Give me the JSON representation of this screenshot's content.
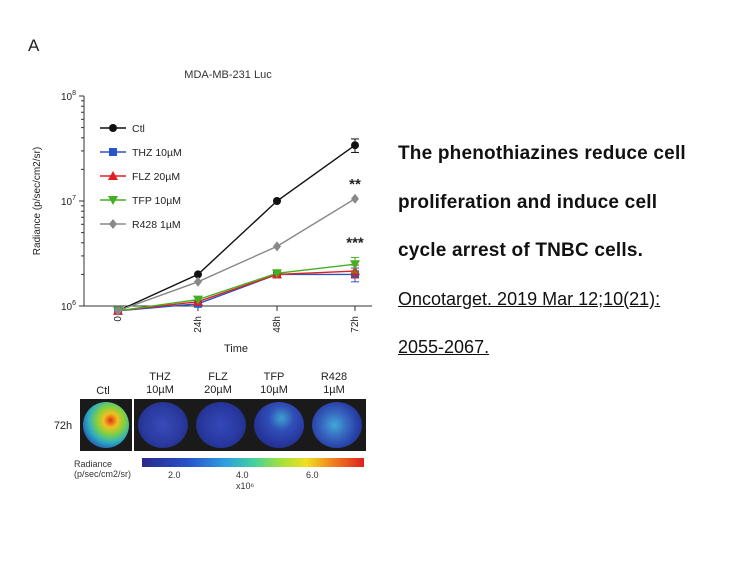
{
  "panel_label": "A",
  "caption": {
    "line1": "The phenothiazines reduce cell",
    "line2": "proliferation and induce cell",
    "line3": "cycle arrest of TNBC cells.",
    "link1": "Oncotarget. 2019 Mar 12;10(21):",
    "link2": "2055-2067. "
  },
  "chart_data": {
    "type": "line",
    "title": "MDA-MB-231 Luc",
    "xlabel": "Time",
    "ylabel": "Radiance (p/sec/cm2/sr)",
    "yscale": "log",
    "ylim": [
      1000000,
      100000000
    ],
    "categories": [
      "0",
      "24h",
      "48h",
      "72h"
    ],
    "legend_position": "top-left",
    "series": [
      {
        "name": "Ctl",
        "color": "#111111",
        "marker": "circle",
        "values": [
          900000,
          2000000,
          10000000,
          34000000
        ],
        "err": [
          0,
          0,
          0,
          5000000
        ]
      },
      {
        "name": "THZ 10µM",
        "color": "#2a55c8",
        "marker": "square",
        "values": [
          900000,
          1050000,
          2000000,
          2000000
        ],
        "err": [
          0,
          0,
          0,
          300000
        ]
      },
      {
        "name": "FLZ 20µM",
        "color": "#e02020",
        "marker": "triangle-up",
        "values": [
          900000,
          1100000,
          2000000,
          2150000
        ],
        "err": [
          0,
          0,
          0,
          300000
        ]
      },
      {
        "name": "TFP 10µM",
        "color": "#44b020",
        "marker": "triangle-down",
        "values": [
          900000,
          1150000,
          2050000,
          2500000
        ],
        "err": [
          0,
          0,
          0,
          400000
        ]
      },
      {
        "name": "R428 1µM",
        "color": "#888888",
        "marker": "diamond",
        "values": [
          900000,
          1700000,
          3700000,
          10500000
        ],
        "err": [
          0,
          0,
          0,
          0
        ]
      }
    ],
    "annotations": [
      {
        "text": "**",
        "series": "R428 1µM",
        "category": "72h"
      },
      {
        "text": "***",
        "series": "TFP 10µM",
        "category": "72h"
      }
    ]
  },
  "imaging": {
    "row_label": "72h",
    "columns": [
      {
        "line1": "",
        "line2": "Ctl"
      },
      {
        "line1": "THZ",
        "line2": "10µM"
      },
      {
        "line1": "FLZ",
        "line2": "20µM"
      },
      {
        "line1": "TFP",
        "line2": "10µM"
      },
      {
        "line1": "R428",
        "line2": "1µM"
      }
    ],
    "colorbar": {
      "label_line1": "Radiance",
      "label_line2": "(p/sec/cm2/sr)",
      "ticks": [
        "2.0",
        "4.0",
        "6.0"
      ],
      "unit": "x10⁶"
    }
  }
}
